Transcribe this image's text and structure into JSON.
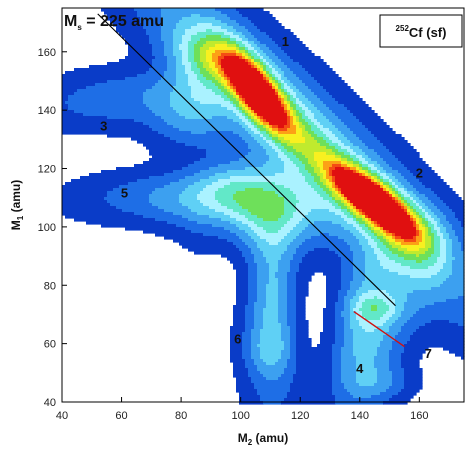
{
  "chart_data": {
    "type": "heatmap",
    "title": "",
    "xlabel": {
      "main": "M",
      "sub": "2",
      "unit": " (amu)"
    },
    "ylabel": {
      "main": "M",
      "sub": "1",
      "unit": " (amu)"
    },
    "xlim": [
      40,
      175
    ],
    "ylim": [
      40,
      175
    ],
    "x_ticks": [
      40,
      60,
      80,
      100,
      120,
      140,
      160
    ],
    "y_ticks": [
      40,
      60,
      80,
      100,
      120,
      140,
      160
    ],
    "legend_box": {
      "sup": "252",
      "main": "Cf (sf)"
    },
    "mass_line": {
      "label_main": "M",
      "label_sub": "s",
      "label_rest": " = 225 amu",
      "total_mass": 225
    },
    "mass_line_segment": {
      "x": [
        52,
        152
      ],
      "y": [
        173,
        73
      ]
    },
    "red_line_segment": {
      "x": [
        138,
        155
      ],
      "y": [
        71,
        59
      ]
    },
    "region_labels": [
      {
        "text": "1",
        "x": 115,
        "y": 162
      },
      {
        "text": "2",
        "x": 160,
        "y": 117
      },
      {
        "text": "3",
        "x": 54,
        "y": 133
      },
      {
        "text": "4",
        "x": 140,
        "y": 50
      },
      {
        "text": "5",
        "x": 61,
        "y": 110
      },
      {
        "text": "6",
        "x": 99,
        "y": 60
      },
      {
        "text": "7",
        "x": 163,
        "y": 55
      }
    ],
    "levels": [
      {
        "threshold": 0.015,
        "color": "#0a3cc8"
      },
      {
        "threshold": 0.07,
        "color": "#1e6ee6"
      },
      {
        "threshold": 0.15,
        "color": "#3ca0f0"
      },
      {
        "threshold": 0.25,
        "color": "#5fd0f5"
      },
      {
        "threshold": 0.35,
        "color": "#aaf2ff"
      },
      {
        "threshold": 0.45,
        "color": "#62e8c8"
      },
      {
        "threshold": 0.55,
        "color": "#6ee05a"
      },
      {
        "threshold": 0.65,
        "color": "#c0ea2e"
      },
      {
        "threshold": 0.74,
        "color": "#f8f020"
      },
      {
        "threshold": 0.83,
        "color": "#fca016"
      },
      {
        "threshold": 0.91,
        "color": "#f44c14"
      },
      {
        "threshold": 0.97,
        "color": "#e01010"
      }
    ],
    "components": [
      {
        "name": "peak-1",
        "x": 105,
        "y": 147,
        "amp": 1.0,
        "sa": 12,
        "sb": 4.6,
        "angle": -55
      },
      {
        "name": "peak-2",
        "x": 145,
        "y": 109,
        "amp": 1.0,
        "sa": 12,
        "sb": 4.6,
        "angle": -38
      },
      {
        "name": "ridge",
        "x": 124,
        "y": 128,
        "amp": 0.4,
        "sa": 48,
        "sb": 9,
        "angle": -45
      },
      {
        "name": "ridge-core",
        "x": 125,
        "y": 126,
        "amp": 0.2,
        "sa": 30,
        "sb": 5,
        "angle": -45
      },
      {
        "name": "upper-shoulder",
        "x": 88,
        "y": 158,
        "amp": 0.35,
        "sa": 8,
        "sb": 6,
        "angle": -40
      },
      {
        "name": "lower-shoulder",
        "x": 158,
        "y": 96,
        "amp": 0.3,
        "sa": 8,
        "sb": 7,
        "angle": -40
      },
      {
        "name": "arm-3",
        "x": 60,
        "y": 144,
        "amp": 0.12,
        "sa": 18,
        "sb": 6,
        "angle": 5
      },
      {
        "name": "arm-3-base",
        "x": 84,
        "y": 141,
        "amp": 0.25,
        "sa": 9,
        "sb": 8,
        "angle": 0
      },
      {
        "name": "arm-5",
        "x": 82,
        "y": 109,
        "amp": 0.22,
        "sa": 20,
        "sb": 5.5,
        "angle": 0
      },
      {
        "name": "arm-5-bridge",
        "x": 98,
        "y": 114,
        "amp": 0.25,
        "sa": 11,
        "sb": 8,
        "angle": -20
      },
      {
        "name": "center-body",
        "x": 112,
        "y": 105,
        "amp": 0.4,
        "sa": 14,
        "sb": 9,
        "angle": 0
      },
      {
        "name": "leg-6",
        "x": 111,
        "y": 72,
        "amp": 0.3,
        "sa": 20,
        "sb": 6,
        "angle": 90
      },
      {
        "name": "leg-6-foot",
        "x": 110,
        "y": 58,
        "amp": 0.12,
        "sa": 5,
        "sb": 5,
        "angle": 0
      },
      {
        "name": "leg-4",
        "x": 143,
        "y": 68,
        "amp": 0.34,
        "sa": 19,
        "sb": 7,
        "angle": 80
      },
      {
        "name": "leg-4-foot",
        "x": 146,
        "y": 47,
        "amp": 0.12,
        "sa": 7,
        "sb": 4,
        "angle": 0
      },
      {
        "name": "blob-7",
        "x": 145,
        "y": 72,
        "amp": 0.22,
        "sa": 6,
        "sb": 3.5,
        "angle": 0
      },
      {
        "name": "right-tail",
        "x": 160,
        "y": 80,
        "amp": 0.1,
        "sa": 12,
        "sb": 6,
        "angle": 70
      }
    ],
    "cutouts": [
      {
        "x": 124,
        "y": 72,
        "amp": 0.8,
        "sa": 6,
        "sb": 18,
        "angle": 0
      },
      {
        "x": 86,
        "y": 124,
        "amp": 0.5,
        "sa": 12,
        "sb": 4.5,
        "angle": 0
      },
      {
        "x": 62,
        "y": 96,
        "amp": 0.5,
        "sa": 14,
        "sb": 10,
        "angle": 0
      },
      {
        "x": 94,
        "y": 84,
        "amp": 0.8,
        "sa": 7,
        "sb": 12,
        "angle": 0
      }
    ]
  }
}
